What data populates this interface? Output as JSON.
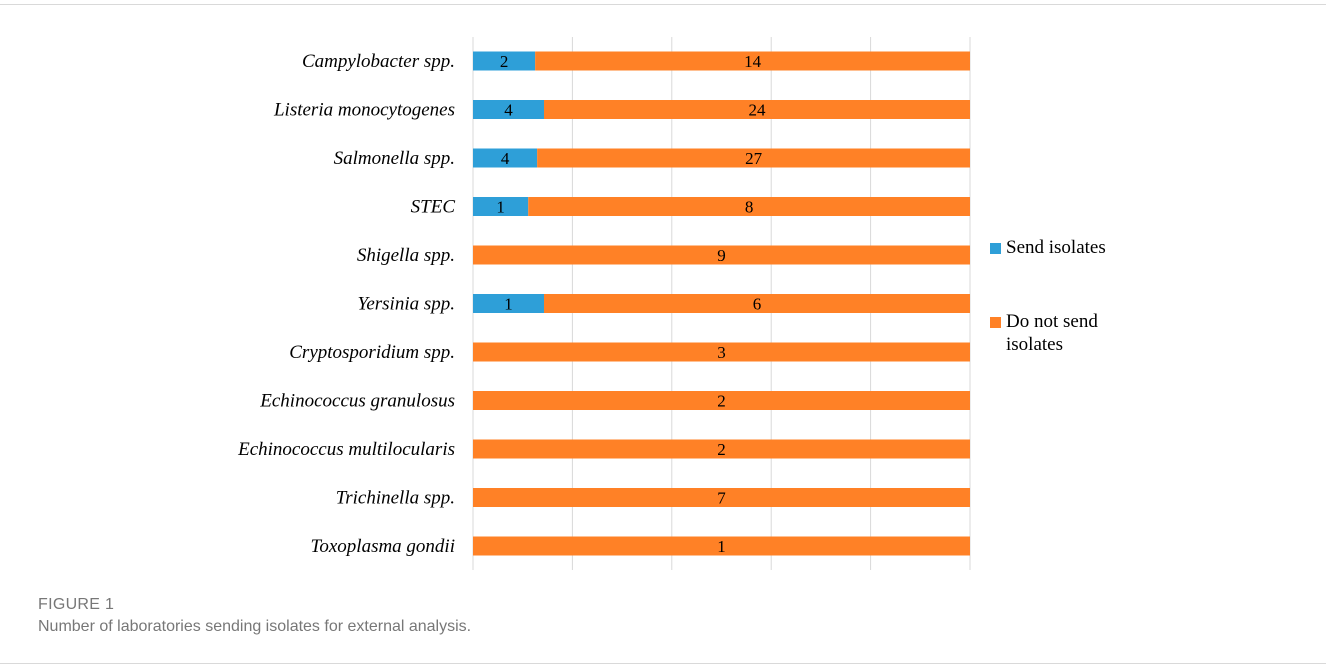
{
  "figure": {
    "label": "FIGURE 1",
    "caption": "Number of laboratories sending isolates for external analysis."
  },
  "colors": {
    "send": "#2E9FD8",
    "do_not_send": "#FF8126",
    "grid": "#d9d9d9"
  },
  "chart_data": {
    "type": "bar",
    "orientation": "horizontal",
    "stacked": "percent",
    "categories": [
      "Campylobacter spp.",
      "Listeria monocytogenes",
      "Salmonella spp.",
      "STEC",
      "Shigella spp.",
      "Yersinia spp.",
      "Cryptosporidium spp.",
      "Echinococcus granulosus",
      "Echinococcus multilocularis",
      "Trichinella spp.",
      "Toxoplasma gondii"
    ],
    "series": [
      {
        "name": "Send isolates",
        "values": [
          2,
          4,
          4,
          1,
          0,
          1,
          0,
          0,
          0,
          0,
          0
        ]
      },
      {
        "name": "Do not send isolates",
        "values": [
          14,
          24,
          27,
          8,
          9,
          6,
          3,
          2,
          2,
          7,
          1
        ]
      }
    ],
    "grid": true,
    "legend_position": "right",
    "xlabel": "",
    "ylabel": ""
  }
}
